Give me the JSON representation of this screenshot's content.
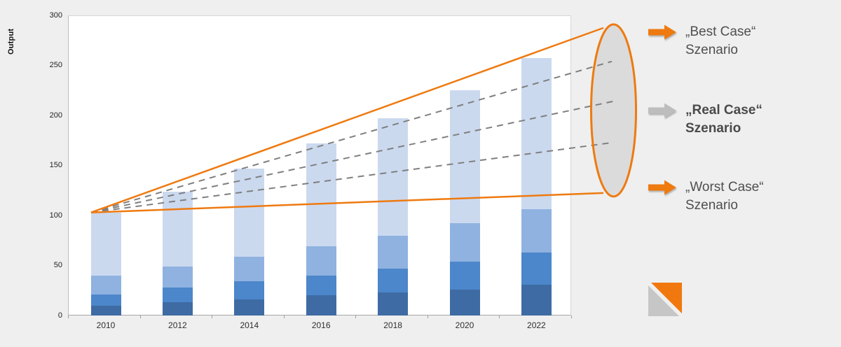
{
  "chart_data": {
    "type": "bar",
    "stacked": true,
    "title": "",
    "ylabel": "Output",
    "xlabel": "",
    "ylim": [
      0,
      300
    ],
    "yticks": [
      0,
      50,
      100,
      150,
      200,
      250,
      300
    ],
    "grid": false,
    "categories": [
      "2010",
      "2012",
      "2014",
      "2016",
      "2018",
      "2020",
      "2022"
    ],
    "series": [
      {
        "name": "segment-bottom-dark-blue",
        "color": "#3e6ba3",
        "values": [
          10,
          13,
          16,
          20,
          23,
          26,
          31
        ]
      },
      {
        "name": "segment-medium-blue",
        "color": "#4c86cb",
        "values": [
          11,
          15,
          18,
          20,
          24,
          28,
          32
        ]
      },
      {
        "name": "segment-light-medium-blue",
        "color": "#8fb2e0",
        "values": [
          19,
          21,
          25,
          29,
          33,
          38,
          43
        ]
      },
      {
        "name": "segment-pale-blue",
        "color": "#cbd9ef",
        "values": [
          63,
          75,
          88,
          103,
          117,
          133,
          151
        ]
      }
    ],
    "totals": [
      103,
      124,
      147,
      172,
      197,
      225,
      257
    ],
    "scenario_funnel": {
      "cone_color": "#ee7a10",
      "dash_color": "#7f7f7f",
      "ellipse_fill": "#dbdbdb",
      "apex": {
        "category": "2010",
        "value": 103
      },
      "cone": {
        "top_end_value": 291,
        "bottom_end_value": 119
      },
      "lines": [
        {
          "name": "best-case",
          "end_value": 254
        },
        {
          "name": "real-case",
          "end_value": 214
        },
        {
          "name": "worst-case",
          "end_value": 173
        }
      ]
    }
  },
  "legend": {
    "items": [
      {
        "name": "best-case-scenario",
        "arrow_color": "#ee7a10",
        "bold": false,
        "line1": "„Best Case“",
        "line2": "Szenario"
      },
      {
        "name": "real-case-scenario",
        "arrow_color": "#bdbdbd",
        "bold": true,
        "line1": "„Real Case“",
        "line2": "Szenario"
      },
      {
        "name": "worst-case-scenario",
        "arrow_color": "#ee7a10",
        "bold": false,
        "line1": "„Worst Case“",
        "line2": "Szenario"
      }
    ]
  },
  "logo": {
    "orange_color": "#f1780e",
    "gray_color": "#c6c6c6"
  }
}
